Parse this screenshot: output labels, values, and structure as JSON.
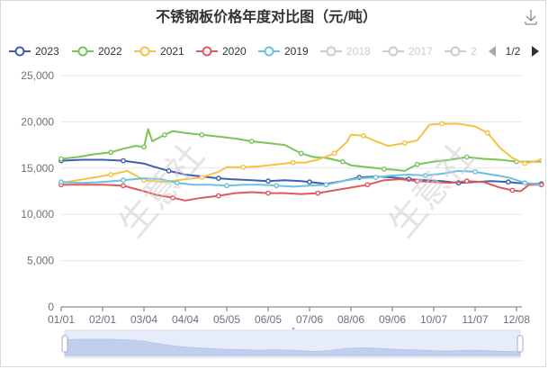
{
  "toolbar": {
    "download_icon": "download-icon"
  },
  "watermark": "生意社",
  "legend_pager": {
    "label": "1/2",
    "prev_icon": "triangle-left-icon",
    "next_icon": "triangle-right-icon"
  },
  "chart_data": {
    "type": "line",
    "title": "不锈钢板价格年度对比图（元/吨）",
    "xlabel": "",
    "ylabel": "",
    "ylim": [
      0,
      25000
    ],
    "yticks": [
      "0",
      "5,000",
      "10,000",
      "15,000",
      "20,000",
      "25,000"
    ],
    "xticks": [
      "01/01",
      "02/01",
      "03/04",
      "04/04",
      "05/05",
      "06/05",
      "07/06",
      "08/06",
      "09/06",
      "10/07",
      "11/07",
      "12/08"
    ],
    "grid": true,
    "legend_position": "top",
    "legend_items": [
      {
        "name": "2023",
        "color": "#3e5fb0",
        "active": true
      },
      {
        "name": "2022",
        "color": "#7cc35a",
        "active": true
      },
      {
        "name": "2021",
        "color": "#f5c342",
        "active": true
      },
      {
        "name": "2020",
        "color": "#e0585b",
        "active": true
      },
      {
        "name": "2019",
        "color": "#6cc1de",
        "active": true
      },
      {
        "name": "2018",
        "color": "#cccccc",
        "active": false
      },
      {
        "name": "2017",
        "color": "#cccccc",
        "active": false
      },
      {
        "name": "2",
        "color": "#cccccc",
        "active": false
      }
    ],
    "series": [
      {
        "name": "2023",
        "color": "#3e5fb0",
        "points": [
          [
            0,
            15800
          ],
          [
            0.5,
            15900
          ],
          [
            1,
            15900
          ],
          [
            1.5,
            15800
          ],
          [
            2,
            15500
          ],
          [
            2.2,
            15200
          ],
          [
            2.6,
            14700
          ],
          [
            3,
            14300
          ],
          [
            3.4,
            14100
          ],
          [
            3.8,
            13900
          ],
          [
            4.1,
            13800
          ],
          [
            4.6,
            13700
          ],
          [
            5,
            13600
          ],
          [
            5.4,
            13700
          ],
          [
            5.8,
            13600
          ],
          [
            6,
            13500
          ],
          [
            6.4,
            13300
          ],
          [
            6.8,
            13600
          ],
          [
            7.2,
            14000
          ],
          [
            7.6,
            14100
          ],
          [
            8,
            14000
          ],
          [
            8.4,
            13800
          ],
          [
            8.8,
            13700
          ],
          [
            9.2,
            13600
          ],
          [
            9.6,
            13400
          ],
          [
            10,
            13500
          ],
          [
            10.4,
            13600
          ],
          [
            10.8,
            13500
          ],
          [
            11,
            13400
          ],
          [
            11.4,
            13300
          ],
          [
            11.6,
            13300
          ]
        ]
      },
      {
        "name": "2022",
        "color": "#7cc35a",
        "points": [
          [
            0,
            16000
          ],
          [
            0.4,
            16200
          ],
          [
            0.8,
            16500
          ],
          [
            1.2,
            16700
          ],
          [
            1.5,
            17100
          ],
          [
            1.8,
            17400
          ],
          [
            2.0,
            17300
          ],
          [
            2.1,
            19200
          ],
          [
            2.2,
            17900
          ],
          [
            2.5,
            18600
          ],
          [
            2.7,
            19000
          ],
          [
            3,
            18800
          ],
          [
            3.4,
            18600
          ],
          [
            3.8,
            18400
          ],
          [
            4.2,
            18200
          ],
          [
            4.6,
            17900
          ],
          [
            5,
            17700
          ],
          [
            5.4,
            17500
          ],
          [
            5.8,
            16600
          ],
          [
            6.1,
            16200
          ],
          [
            6.4,
            16100
          ],
          [
            6.8,
            15700
          ],
          [
            7.0,
            15300
          ],
          [
            7.4,
            15100
          ],
          [
            7.8,
            14900
          ],
          [
            8.1,
            14800
          ],
          [
            8.3,
            14700
          ],
          [
            8.6,
            15400
          ],
          [
            9,
            15700
          ],
          [
            9.4,
            15900
          ],
          [
            9.8,
            16200
          ],
          [
            10.2,
            16000
          ],
          [
            10.6,
            15900
          ],
          [
            11,
            15700
          ],
          [
            11.4,
            15700
          ],
          [
            11.6,
            15700
          ]
        ]
      },
      {
        "name": "2021",
        "color": "#f5c342",
        "points": [
          [
            0,
            13400
          ],
          [
            0.4,
            13700
          ],
          [
            0.8,
            14000
          ],
          [
            1.2,
            14300
          ],
          [
            1.6,
            14700
          ],
          [
            1.8,
            14200
          ],
          [
            2.0,
            13700
          ],
          [
            2.5,
            13500
          ],
          [
            3,
            13800
          ],
          [
            3.4,
            14000
          ],
          [
            3.8,
            14600
          ],
          [
            4,
            15100
          ],
          [
            4.4,
            15100
          ],
          [
            4.8,
            15200
          ],
          [
            5.2,
            15400
          ],
          [
            5.6,
            15600
          ],
          [
            5.9,
            15600
          ],
          [
            6.2,
            15900
          ],
          [
            6.6,
            16600
          ],
          [
            6.9,
            17800
          ],
          [
            7.0,
            18600
          ],
          [
            7.3,
            18500
          ],
          [
            7.6,
            17900
          ],
          [
            7.9,
            17400
          ],
          [
            8.3,
            17700
          ],
          [
            8.6,
            18000
          ],
          [
            8.9,
            19700
          ],
          [
            9.2,
            19800
          ],
          [
            9.6,
            19800
          ],
          [
            10,
            19500
          ],
          [
            10.3,
            18800
          ],
          [
            10.6,
            17200
          ],
          [
            10.9,
            16100
          ],
          [
            11.2,
            15500
          ],
          [
            11.5,
            15800
          ],
          [
            11.6,
            16000
          ]
        ]
      },
      {
        "name": "2020",
        "color": "#e0585b",
        "points": [
          [
            0,
            13200
          ],
          [
            0.5,
            13200
          ],
          [
            1,
            13200
          ],
          [
            1.5,
            13100
          ],
          [
            2,
            12500
          ],
          [
            2.3,
            12100
          ],
          [
            2.7,
            11800
          ],
          [
            3,
            11500
          ],
          [
            3.4,
            11800
          ],
          [
            3.8,
            12000
          ],
          [
            4.2,
            12300
          ],
          [
            4.6,
            12400
          ],
          [
            5,
            12300
          ],
          [
            5.4,
            12300
          ],
          [
            5.8,
            12200
          ],
          [
            6.2,
            12300
          ],
          [
            6.6,
            12600
          ],
          [
            7,
            12900
          ],
          [
            7.4,
            13200
          ],
          [
            7.8,
            13700
          ],
          [
            8.2,
            13800
          ],
          [
            8.6,
            13600
          ],
          [
            9,
            13500
          ],
          [
            9.4,
            13400
          ],
          [
            9.8,
            13600
          ],
          [
            10.2,
            13500
          ],
          [
            10.6,
            12900
          ],
          [
            10.9,
            12600
          ],
          [
            11.1,
            12500
          ],
          [
            11.3,
            13200
          ],
          [
            11.6,
            13200
          ]
        ]
      },
      {
        "name": "2019",
        "color": "#6cc1de",
        "points": [
          [
            0,
            13500
          ],
          [
            0.5,
            13400
          ],
          [
            1,
            13500
          ],
          [
            1.5,
            13700
          ],
          [
            2,
            13900
          ],
          [
            2.4,
            13800
          ],
          [
            2.8,
            13400
          ],
          [
            3.2,
            13200
          ],
          [
            3.6,
            13200
          ],
          [
            4,
            13100
          ],
          [
            4.4,
            13200
          ],
          [
            4.8,
            13200
          ],
          [
            5.2,
            13100
          ],
          [
            5.6,
            13000
          ],
          [
            6,
            13100
          ],
          [
            6.4,
            13200
          ],
          [
            6.8,
            13600
          ],
          [
            7.2,
            13900
          ],
          [
            7.6,
            14000
          ],
          [
            8,
            14200
          ],
          [
            8.4,
            14300
          ],
          [
            8.8,
            14200
          ],
          [
            9.2,
            14400
          ],
          [
            9.6,
            14700
          ],
          [
            10,
            14600
          ],
          [
            10.4,
            14300
          ],
          [
            10.8,
            14000
          ],
          [
            11.2,
            13400
          ],
          [
            11.6,
            13200
          ]
        ]
      }
    ]
  }
}
